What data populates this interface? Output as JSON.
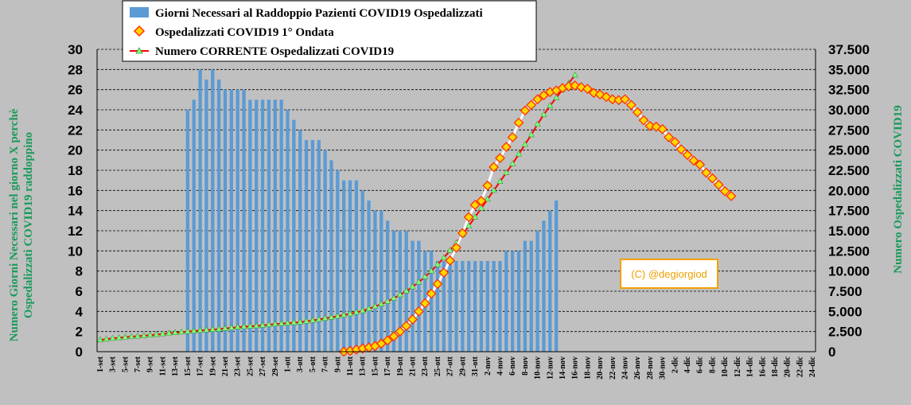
{
  "chart_data": {
    "type": "bar+line",
    "title": "",
    "legend": {
      "placement": "top-center",
      "entries": [
        {
          "label": "Giorni Necessari al Raddoppio Pazienti COVID19 Ospedalizzati",
          "marker": "bar",
          "color": "#5b9bd5"
        },
        {
          "label": "Ospedalizzati COVID19 1° Ondata",
          "marker": "diamond",
          "color": "#ff0000",
          "fill": "#ffd700"
        },
        {
          "label": "Numero CORRENTE Ospedalizzati COVID19",
          "marker": "triangle-line",
          "color": "#ff0000",
          "fill": "#7fff7f"
        }
      ]
    },
    "y_left": {
      "label": "Numero Giorni Necessari nel giorno X perchè Ospedalizzati COVID19 raddoppino",
      "label_lines": [
        "Numero Giorni Necessari nel giorno X perchè",
        "Ospedalizzati COVID19 raddoppino"
      ],
      "range": [
        0,
        30
      ],
      "ticks": [
        "0",
        "2",
        "4",
        "6",
        "8",
        "10",
        "12",
        "14",
        "16",
        "18",
        "20",
        "22",
        "24",
        "26",
        "28",
        "30"
      ]
    },
    "y_right": {
      "label": "Numero Ospedalizzati COVID19",
      "range": [
        0,
        37500
      ],
      "ticks": [
        "0",
        "2.500",
        "5.000",
        "7.500",
        "10.000",
        "12.500",
        "15.000",
        "17.500",
        "20.000",
        "22.500",
        "25.000",
        "27.500",
        "30.000",
        "32.500",
        "35.000",
        "37.500"
      ]
    },
    "x_start": "1-set",
    "x_labels": [
      "1-set",
      "3-set",
      "5-set",
      "7-set",
      "9-set",
      "11-set",
      "13-set",
      "15-set",
      "17-set",
      "19-set",
      "21-set",
      "23-set",
      "25-set",
      "27-set",
      "29-set",
      "1-ott",
      "3-ott",
      "5-ott",
      "7-ott",
      "9-ott",
      "11-ott",
      "13-ott",
      "15-ott",
      "17-ott",
      "19-ott",
      "21-ott",
      "23-ott",
      "25-ott",
      "27-ott",
      "29-ott",
      "31-ott",
      "2-nov",
      "4-nov",
      "6-nov",
      "8-nov",
      "10-nov",
      "12-nov",
      "14-nov",
      "16-nov",
      "18-nov",
      "20-nov",
      "22-nov",
      "24-nov",
      "26-nov",
      "28-nov",
      "30-nov",
      "2-dic",
      "4-dic",
      "6-dic",
      "8-dic",
      "10-dic",
      "12-dic",
      "14-dic",
      "16-dic",
      "18-dic",
      "20-dic",
      "22-dic",
      "24-dic"
    ],
    "num_days": 115,
    "bars": {
      "start_index": 14,
      "values": [
        24,
        25,
        28,
        27,
        28,
        27,
        26,
        26,
        26,
        26,
        25,
        25,
        25,
        25,
        25,
        25,
        24,
        23,
        22,
        21,
        21,
        21,
        20,
        19,
        18,
        17,
        17,
        17,
        16,
        15,
        14,
        14,
        13,
        12,
        12,
        12,
        11,
        11,
        10,
        10,
        9,
        9,
        9,
        9,
        9,
        9,
        9,
        9,
        9,
        9,
        9,
        10,
        10,
        10,
        11,
        11,
        12,
        13,
        14,
        15
      ]
    },
    "current_series": {
      "start_index": 0,
      "values": [
        1450,
        1550,
        1650,
        1720,
        1800,
        1860,
        1920,
        1980,
        2050,
        2120,
        2200,
        2270,
        2350,
        2420,
        2500,
        2560,
        2620,
        2680,
        2740,
        2800,
        2880,
        2960,
        3040,
        3100,
        3150,
        3200,
        3260,
        3340,
        3420,
        3480,
        3530,
        3600,
        3660,
        3760,
        3880,
        4000,
        4130,
        4260,
        4400,
        4540,
        4700,
        4880,
        5080,
        5320,
        5600,
        5900,
        6240,
        6620,
        7050,
        7520,
        8040,
        8620,
        9280,
        10000,
        10800,
        11650,
        12550,
        13500,
        14500,
        15600,
        16700,
        17800,
        18900,
        20000,
        21100,
        22200,
        23300,
        24500,
        25700,
        26900,
        28200,
        29400,
        30500,
        31500,
        32500,
        33300,
        34300
      ]
    },
    "first_wave_series": {
      "start_index": 39,
      "values": [
        2,
        100,
        250,
        400,
        520,
        700,
        1000,
        1400,
        1900,
        2500,
        3200,
        4000,
        5000,
        6000,
        7200,
        8400,
        9800,
        11300,
        12900,
        14700,
        16700,
        18200,
        18700,
        20600,
        22900,
        24000,
        25400,
        26600,
        28400,
        29900,
        30600,
        31300,
        31800,
        32200,
        32400,
        32700,
        32900,
        33000,
        32800,
        32600,
        32100,
        31900,
        31600,
        31300,
        31200,
        31300,
        30600,
        29700,
        28700,
        28000,
        27900,
        27600,
        26600,
        26000,
        25100,
        24400,
        23700,
        23200,
        22200,
        21500,
        20700,
        19900,
        19300
      ]
    }
  },
  "credit": "(C) @degiorgiod"
}
